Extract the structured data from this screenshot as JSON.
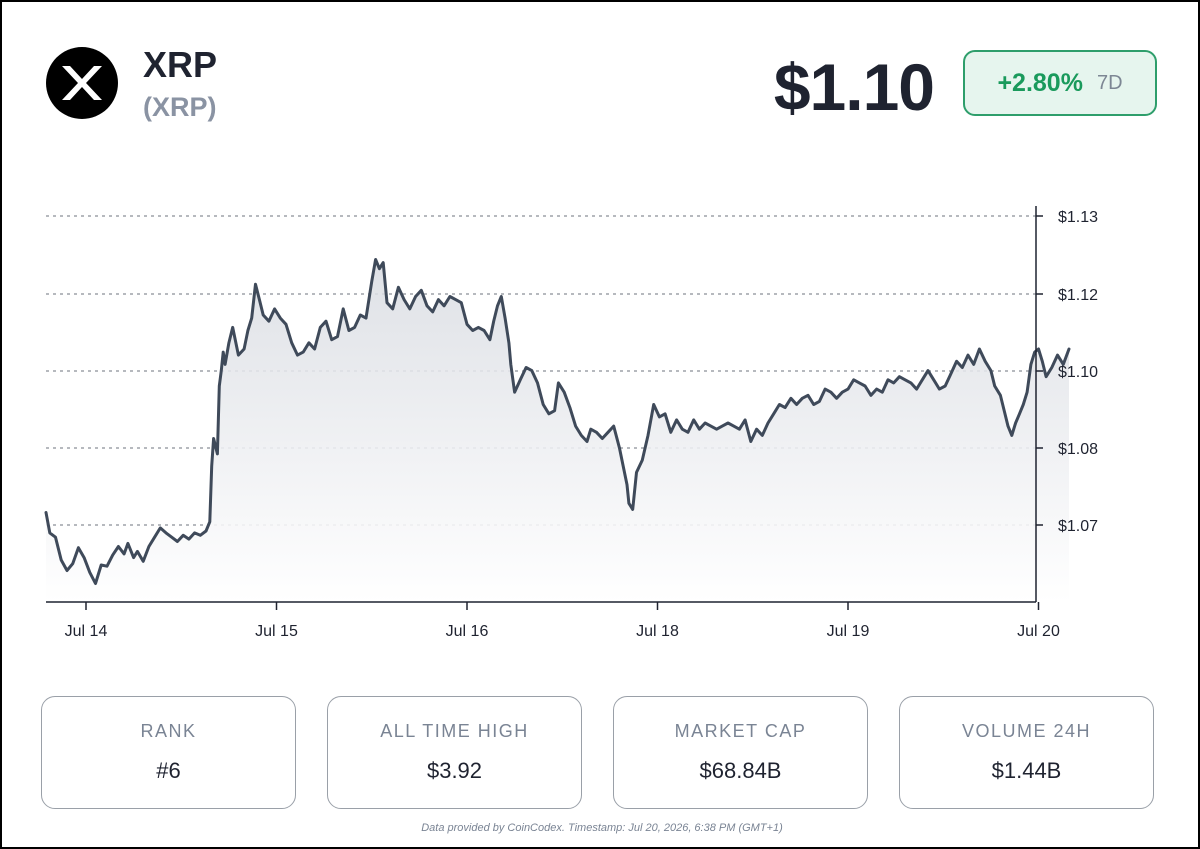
{
  "coin": {
    "name": "XRP",
    "symbol": "(XRP)",
    "logo_icon": "xrp-x-icon"
  },
  "price": "$1.10",
  "change": {
    "value": "+2.80%",
    "period": "7D",
    "color": "#1a9a5c"
  },
  "stats": [
    {
      "label": "RANK",
      "value": "#6"
    },
    {
      "label": "ALL TIME HIGH",
      "value": "$3.92"
    },
    {
      "label": "MARKET CAP",
      "value": "$68.84B"
    },
    {
      "label": "VOLUME 24H",
      "value": "$1.44B"
    }
  ],
  "footer": "Data provided by CoinCodex. Timestamp: Jul 20, 2026, 6:38 PM (GMT+1)",
  "chart_data": {
    "type": "area",
    "x_unit": "days",
    "x_tick_labels": [
      "Jul 14",
      "Jul 15",
      "Jul 16",
      "Jul 18",
      "Jul 19",
      "Jul 20"
    ],
    "y_tick_labels": [
      "$1.13",
      "$1.12",
      "$1.10",
      "$1.08",
      "$1.07"
    ],
    "ylim": [
      1.06,
      1.13
    ],
    "grid": true,
    "line_color": "#3f4a5a",
    "series": [
      {
        "values": [
          [
            -0.21,
            1.0745
          ],
          [
            -0.19,
            1.0712
          ],
          [
            -0.16,
            1.0705
          ],
          [
            -0.13,
            1.0668
          ],
          [
            -0.1,
            1.0651
          ],
          [
            -0.07,
            1.0662
          ],
          [
            -0.04,
            1.0688
          ],
          [
            -0.01,
            1.0672
          ],
          [
            0.02,
            1.0648
          ],
          [
            0.05,
            1.063
          ],
          [
            0.08,
            1.066
          ],
          [
            0.11,
            1.0658
          ],
          [
            0.14,
            1.0676
          ],
          [
            0.17,
            1.069
          ],
          [
            0.2,
            1.0678
          ],
          [
            0.22,
            1.0695
          ],
          [
            0.25,
            1.0672
          ],
          [
            0.27,
            1.0682
          ],
          [
            0.3,
            1.0666
          ],
          [
            0.33,
            1.069
          ],
          [
            0.36,
            1.0705
          ],
          [
            0.39,
            1.072
          ],
          [
            0.42,
            1.0712
          ],
          [
            0.45,
            1.0705
          ],
          [
            0.48,
            1.0698
          ],
          [
            0.51,
            1.0708
          ],
          [
            0.54,
            1.0702
          ],
          [
            0.57,
            1.0712
          ],
          [
            0.6,
            1.0708
          ],
          [
            0.63,
            1.0715
          ],
          [
            0.65,
            1.073
          ],
          [
            0.66,
            1.082
          ],
          [
            0.67,
            1.0865
          ],
          [
            0.69,
            1.084
          ],
          [
            0.7,
            1.095
          ],
          [
            0.71,
            1.0975
          ],
          [
            0.72,
            1.1005
          ],
          [
            0.73,
            1.0985
          ],
          [
            0.75,
            1.102
          ],
          [
            0.77,
            1.1045
          ],
          [
            0.8,
            1.1
          ],
          [
            0.83,
            1.101
          ],
          [
            0.85,
            1.104
          ],
          [
            0.87,
            1.106
          ],
          [
            0.89,
            1.1115
          ],
          [
            0.91,
            1.109
          ],
          [
            0.93,
            1.1065
          ],
          [
            0.96,
            1.1055
          ],
          [
            0.99,
            1.1075
          ],
          [
            1.02,
            1.106
          ],
          [
            1.05,
            1.105
          ],
          [
            1.08,
            1.102
          ],
          [
            1.11,
            1.1
          ],
          [
            1.14,
            1.1005
          ],
          [
            1.17,
            1.102
          ],
          [
            1.2,
            1.101
          ],
          [
            1.23,
            1.1045
          ],
          [
            1.26,
            1.1055
          ],
          [
            1.29,
            1.1025
          ],
          [
            1.32,
            1.103
          ],
          [
            1.35,
            1.1075
          ],
          [
            1.38,
            1.104
          ],
          [
            1.41,
            1.1045
          ],
          [
            1.44,
            1.1065
          ],
          [
            1.47,
            1.106
          ],
          [
            1.5,
            1.112
          ],
          [
            1.52,
            1.1155
          ],
          [
            1.54,
            1.114
          ],
          [
            1.56,
            1.115
          ],
          [
            1.58,
            1.1085
          ],
          [
            1.61,
            1.1075
          ],
          [
            1.64,
            1.111
          ],
          [
            1.67,
            1.109
          ],
          [
            1.7,
            1.1075
          ],
          [
            1.73,
            1.1095
          ],
          [
            1.76,
            1.1105
          ],
          [
            1.79,
            1.108
          ],
          [
            1.82,
            1.107
          ],
          [
            1.85,
            1.109
          ],
          [
            1.88,
            1.108
          ],
          [
            1.91,
            1.1095
          ],
          [
            1.94,
            1.109
          ],
          [
            1.97,
            1.1085
          ],
          [
            2.0,
            1.105
          ],
          [
            2.03,
            1.104
          ],
          [
            2.06,
            1.1045
          ],
          [
            2.09,
            1.104
          ],
          [
            2.12,
            1.1025
          ],
          [
            2.14,
            1.1055
          ],
          [
            2.16,
            1.108
          ],
          [
            2.18,
            1.1095
          ],
          [
            2.2,
            1.106
          ],
          [
            2.22,
            1.102
          ],
          [
            2.23,
            1.0985
          ],
          [
            2.25,
            1.094
          ],
          [
            2.28,
            1.096
          ],
          [
            2.31,
            1.098
          ],
          [
            2.34,
            1.0975
          ],
          [
            2.37,
            1.0955
          ],
          [
            2.4,
            1.092
          ],
          [
            2.43,
            1.0905
          ],
          [
            2.46,
            1.091
          ],
          [
            2.48,
            1.0955
          ],
          [
            2.51,
            1.094
          ],
          [
            2.54,
            1.0915
          ],
          [
            2.57,
            1.0885
          ],
          [
            2.6,
            1.087
          ],
          [
            2.63,
            1.086
          ],
          [
            2.65,
            1.088
          ],
          [
            2.68,
            1.0875
          ],
          [
            2.71,
            1.0865
          ],
          [
            2.74,
            1.0875
          ],
          [
            2.77,
            1.0885
          ],
          [
            2.8,
            1.085
          ],
          [
            2.82,
            1.082
          ],
          [
            2.84,
            1.079
          ],
          [
            2.85,
            1.076
          ],
          [
            2.87,
            1.075
          ],
          [
            2.89,
            1.081
          ],
          [
            2.92,
            1.083
          ],
          [
            2.95,
            1.087
          ],
          [
            2.98,
            1.092
          ],
          [
            3.01,
            1.09
          ],
          [
            3.04,
            1.0905
          ],
          [
            3.07,
            1.0875
          ],
          [
            3.1,
            1.0895
          ],
          [
            3.13,
            1.088
          ],
          [
            3.16,
            1.0875
          ],
          [
            3.19,
            1.0895
          ],
          [
            3.22,
            1.088
          ],
          [
            3.25,
            1.089
          ],
          [
            3.28,
            1.0885
          ],
          [
            3.31,
            1.088
          ],
          [
            3.34,
            1.0885
          ],
          [
            3.37,
            1.089
          ],
          [
            3.4,
            1.0885
          ],
          [
            3.43,
            1.088
          ],
          [
            3.46,
            1.0895
          ],
          [
            3.49,
            1.086
          ],
          [
            3.52,
            1.088
          ],
          [
            3.55,
            1.087
          ],
          [
            3.58,
            1.089
          ],
          [
            3.61,
            1.0905
          ],
          [
            3.64,
            1.092
          ],
          [
            3.67,
            1.0915
          ],
          [
            3.7,
            1.093
          ],
          [
            3.73,
            1.092
          ],
          [
            3.76,
            1.093
          ],
          [
            3.79,
            1.0935
          ],
          [
            3.82,
            1.092
          ],
          [
            3.85,
            1.0925
          ],
          [
            3.88,
            1.0945
          ],
          [
            3.91,
            1.094
          ],
          [
            3.94,
            1.093
          ],
          [
            3.97,
            1.094
          ],
          [
            4.0,
            1.0945
          ],
          [
            4.03,
            1.096
          ],
          [
            4.06,
            1.0955
          ],
          [
            4.09,
            1.095
          ],
          [
            4.12,
            1.0935
          ],
          [
            4.15,
            1.0945
          ],
          [
            4.18,
            1.094
          ],
          [
            4.21,
            1.096
          ],
          [
            4.24,
            1.0955
          ],
          [
            4.27,
            1.0965
          ],
          [
            4.3,
            1.096
          ],
          [
            4.33,
            1.0955
          ],
          [
            4.36,
            1.0945
          ],
          [
            4.39,
            1.096
          ],
          [
            4.42,
            1.0975
          ],
          [
            4.45,
            1.096
          ],
          [
            4.48,
            1.0945
          ],
          [
            4.51,
            1.095
          ],
          [
            4.54,
            1.097
          ],
          [
            4.57,
            1.099
          ],
          [
            4.6,
            1.098
          ],
          [
            4.63,
            1.1
          ],
          [
            4.66,
            1.0985
          ],
          [
            4.69,
            1.101
          ],
          [
            4.72,
            1.099
          ],
          [
            4.75,
            1.0975
          ],
          [
            4.77,
            1.095
          ],
          [
            4.8,
            1.0935
          ],
          [
            4.82,
            1.091
          ],
          [
            4.84,
            1.0885
          ],
          [
            4.86,
            1.087
          ],
          [
            4.88,
            1.089
          ],
          [
            4.9,
            1.0905
          ],
          [
            4.92,
            1.092
          ],
          [
            4.94,
            1.094
          ],
          [
            4.96,
            1.0985
          ],
          [
            4.98,
            1.1005
          ],
          [
            5.0,
            1.101
          ],
          [
            5.02,
            1.099
          ],
          [
            5.04,
            1.0965
          ],
          [
            5.07,
            1.098
          ],
          [
            5.1,
            1.1
          ],
          [
            5.13,
            1.0985
          ],
          [
            5.16,
            1.101
          ]
        ]
      }
    ]
  }
}
